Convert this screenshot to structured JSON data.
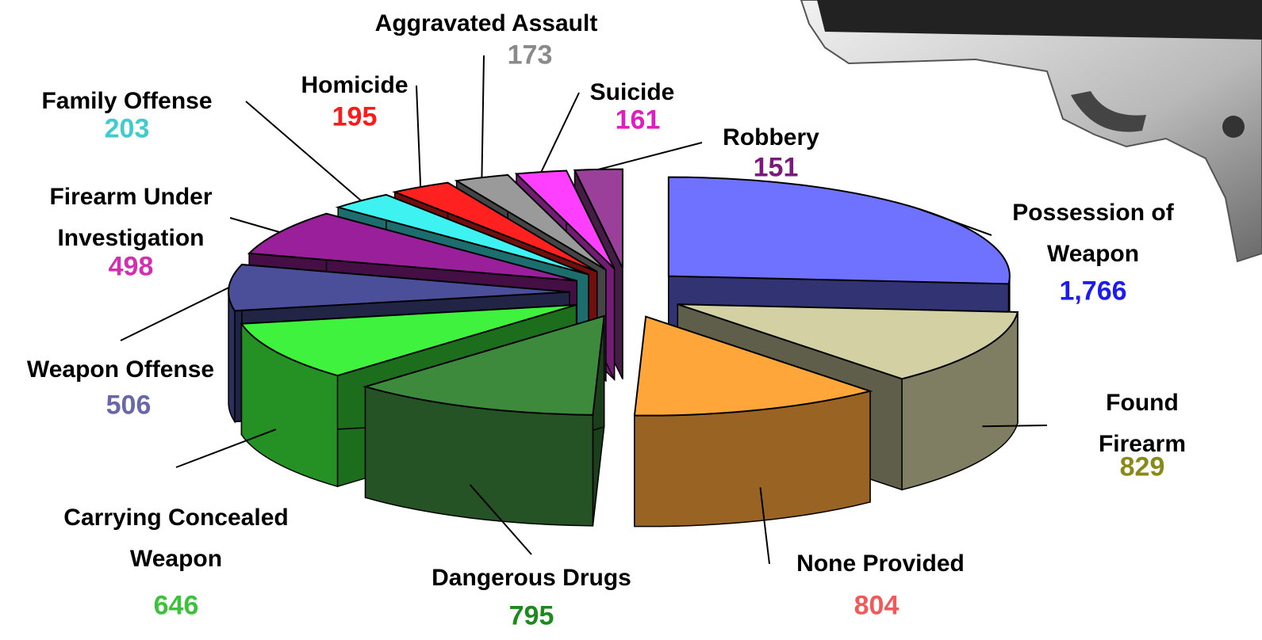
{
  "chart_data": {
    "type": "pie3d",
    "categories": [
      "Possession of\nWeapon",
      "Found Firearm",
      "None Provided",
      "Dangerous Drugs",
      "Carrying Concealed\nWeapon",
      "Weapon Offense",
      "Firearm Under\nInvestigation",
      "Family Offense",
      "Homicide",
      "Aggravated Assault",
      "Suicide",
      "Robbery"
    ],
    "values": [
      1766,
      829,
      804,
      795,
      646,
      506,
      498,
      203,
      195,
      173,
      161,
      151
    ],
    "value_labels": [
      "1,766",
      "829",
      "804",
      "795",
      "646",
      "506",
      "498",
      "203",
      "195",
      "173",
      "161",
      "151"
    ],
    "colors": [
      "#6f72ff",
      "#d3d0a4",
      "#ffa63a",
      "#3d8a3d",
      "#3ef23e",
      "#4b4f9a",
      "#9a1f9a",
      "#3ff2f2",
      "#ff2020",
      "#9a9a9a",
      "#ff3fff",
      "#9a3f9a"
    ],
    "value_label_colors": [
      "#1c1cf2",
      "#8a8a1c",
      "#f25a5a",
      "#1e8a1e",
      "#3ec23e",
      "#6868a8",
      "#d42fb0",
      "#3ecccc",
      "#ff1a1a",
      "#8a8a8a",
      "#e01ec0",
      "#7a1a7a"
    ]
  }
}
